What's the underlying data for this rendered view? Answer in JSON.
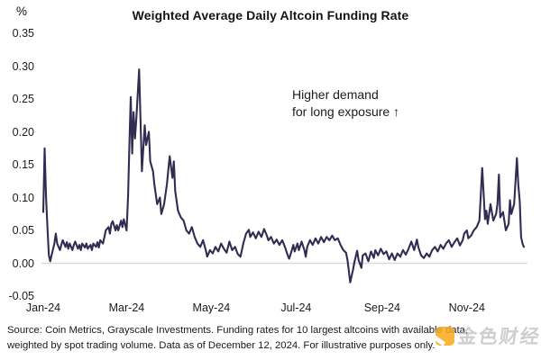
{
  "header": {
    "title": "Weighted Average Daily Altcoin Funding Rate",
    "y_axis_unit": "%"
  },
  "annotation": {
    "line1": "Higher demand",
    "line2": "for long exposure ↑"
  },
  "footer": {
    "source_line1": "Source: Coin Metrics, Grayscale Investments. Funding rates for 10 largest altcoins with available data,",
    "source_line2": "weighted by spot trading volume. Data as of December 12, 2024. For illustrative purposes only."
  },
  "watermark": {
    "text": "金色财经",
    "icon_color": "#F8A91B"
  },
  "chart_data": {
    "type": "line",
    "title": "Weighted Average Daily Altcoin Funding Rate",
    "xlabel": "",
    "ylabel": "%",
    "ylim": [
      -0.05,
      0.35
    ],
    "grid": false,
    "legend": null,
    "line_color": "#322B52",
    "zero_line_color": "#D9D9D9",
    "x_unit": "days since 2024-01-01",
    "x_range_days": [
      0,
      346
    ],
    "yticks": [
      {
        "label": "0.35",
        "value": 0.35
      },
      {
        "label": "0.30",
        "value": 0.3
      },
      {
        "label": "0.25",
        "value": 0.25
      },
      {
        "label": "0.20",
        "value": 0.2
      },
      {
        "label": "0.15",
        "value": 0.15
      },
      {
        "label": "0.10",
        "value": 0.1
      },
      {
        "label": "0.05",
        "value": 0.05
      },
      {
        "label": "0.00",
        "value": 0.0
      },
      {
        "label": "-0.05",
        "value": -0.05
      }
    ],
    "xticks": [
      {
        "label": "Jan-24",
        "day": 0
      },
      {
        "label": "Mar-24",
        "day": 60
      },
      {
        "label": "May-24",
        "day": 121
      },
      {
        "label": "Jul-24",
        "day": 182
      },
      {
        "label": "Sep-24",
        "day": 244
      },
      {
        "label": "Nov-24",
        "day": 305
      }
    ],
    "points": [
      [
        0,
        0.078
      ],
      [
        1,
        0.175
      ],
      [
        2,
        0.1
      ],
      [
        3,
        0.055
      ],
      [
        4,
        0.012
      ],
      [
        5,
        0.003
      ],
      [
        6,
        0.012
      ],
      [
        8,
        0.03
      ],
      [
        9,
        0.045
      ],
      [
        10,
        0.03
      ],
      [
        12,
        0.02
      ],
      [
        13,
        0.028
      ],
      [
        14,
        0.035
      ],
      [
        16,
        0.025
      ],
      [
        17,
        0.032
      ],
      [
        18,
        0.022
      ],
      [
        19,
        0.03
      ],
      [
        21,
        0.02
      ],
      [
        22,
        0.028
      ],
      [
        23,
        0.033
      ],
      [
        25,
        0.022
      ],
      [
        26,
        0.028
      ],
      [
        27,
        0.02
      ],
      [
        28,
        0.03
      ],
      [
        30,
        0.024
      ],
      [
        31,
        0.03
      ],
      [
        32,
        0.022
      ],
      [
        34,
        0.028
      ],
      [
        35,
        0.02
      ],
      [
        36,
        0.03
      ],
      [
        38,
        0.025
      ],
      [
        39,
        0.032
      ],
      [
        40,
        0.024
      ],
      [
        41,
        0.035
      ],
      [
        43,
        0.03
      ],
      [
        44,
        0.04
      ],
      [
        45,
        0.05
      ],
      [
        47,
        0.055
      ],
      [
        48,
        0.045
      ],
      [
        49,
        0.06
      ],
      [
        50,
        0.064
      ],
      [
        52,
        0.05
      ],
      [
        53,
        0.058
      ],
      [
        54,
        0.05
      ],
      [
        56,
        0.065
      ],
      [
        57,
        0.055
      ],
      [
        58,
        0.067
      ],
      [
        60,
        0.05
      ],
      [
        61,
        0.1
      ],
      [
        62,
        0.18
      ],
      [
        63,
        0.253
      ],
      [
        64,
        0.167
      ],
      [
        65,
        0.23
      ],
      [
        66,
        0.19
      ],
      [
        67,
        0.22
      ],
      [
        69,
        0.295
      ],
      [
        71,
        0.14
      ],
      [
        73,
        0.21
      ],
      [
        74,
        0.18
      ],
      [
        76,
        0.2
      ],
      [
        77,
        0.155
      ],
      [
        79,
        0.14
      ],
      [
        80,
        0.12
      ],
      [
        82,
        0.09
      ],
      [
        84,
        0.1
      ],
      [
        85,
        0.075
      ],
      [
        87,
        0.09
      ],
      [
        89,
        0.12
      ],
      [
        91,
        0.163
      ],
      [
        93,
        0.13
      ],
      [
        94,
        0.155
      ],
      [
        95,
        0.11
      ],
      [
        97,
        0.08
      ],
      [
        99,
        0.07
      ],
      [
        101,
        0.065
      ],
      [
        103,
        0.05
      ],
      [
        105,
        0.045
      ],
      [
        107,
        0.055
      ],
      [
        109,
        0.04
      ],
      [
        111,
        0.03
      ],
      [
        113,
        0.025
      ],
      [
        115,
        0.035
      ],
      [
        117,
        0.02
      ],
      [
        118,
        0.01
      ],
      [
        120,
        0.02
      ],
      [
        122,
        0.015
      ],
      [
        124,
        0.025
      ],
      [
        126,
        0.018
      ],
      [
        128,
        0.03
      ],
      [
        130,
        0.022
      ],
      [
        132,
        0.016
      ],
      [
        134,
        0.033
      ],
      [
        136,
        0.02
      ],
      [
        138,
        0.025
      ],
      [
        140,
        0.014
      ],
      [
        142,
        0.01
      ],
      [
        144,
        0.03
      ],
      [
        146,
        0.045
      ],
      [
        148,
        0.051
      ],
      [
        149,
        0.04
      ],
      [
        151,
        0.047
      ],
      [
        153,
        0.038
      ],
      [
        155,
        0.048
      ],
      [
        157,
        0.04
      ],
      [
        159,
        0.052
      ],
      [
        161,
        0.042
      ],
      [
        162,
        0.035
      ],
      [
        164,
        0.04
      ],
      [
        166,
        0.03
      ],
      [
        168,
        0.036
      ],
      [
        170,
        0.028
      ],
      [
        172,
        0.035
      ],
      [
        174,
        0.025
      ],
      [
        176,
        0.012
      ],
      [
        177,
        0.007
      ],
      [
        179,
        0.02
      ],
      [
        180,
        0.028
      ],
      [
        181,
        0.018
      ],
      [
        183,
        0.03
      ],
      [
        184,
        0.02
      ],
      [
        186,
        0.033
      ],
      [
        188,
        0.02
      ],
      [
        189,
        0.01
      ],
      [
        190,
        0.025
      ],
      [
        192,
        0.035
      ],
      [
        194,
        0.028
      ],
      [
        196,
        0.038
      ],
      [
        198,
        0.03
      ],
      [
        200,
        0.04
      ],
      [
        202,
        0.032
      ],
      [
        204,
        0.04
      ],
      [
        206,
        0.035
      ],
      [
        208,
        0.042
      ],
      [
        210,
        0.035
      ],
      [
        212,
        0.038
      ],
      [
        214,
        0.028
      ],
      [
        216,
        0.02
      ],
      [
        218,
        0.016
      ],
      [
        219,
        0.005
      ],
      [
        221,
        -0.029
      ],
      [
        223,
        -0.01
      ],
      [
        224,
        0.002
      ],
      [
        226,
        0.019
      ],
      [
        227,
        0.005
      ],
      [
        229,
        -0.007
      ],
      [
        230,
        0.012
      ],
      [
        232,
        0.015
      ],
      [
        234,
        0.003
      ],
      [
        236,
        0.018
      ],
      [
        238,
        0.008
      ],
      [
        239,
        0.02
      ],
      [
        241,
        0.012
      ],
      [
        243,
        0.022
      ],
      [
        245,
        0.014
      ],
      [
        247,
        0.018
      ],
      [
        249,
        0.006
      ],
      [
        251,
        0.015
      ],
      [
        253,
        0.005
      ],
      [
        255,
        0.015
      ],
      [
        257,
        0.01
      ],
      [
        259,
        0.02
      ],
      [
        261,
        0.013
      ],
      [
        263,
        0.022
      ],
      [
        265,
        0.033
      ],
      [
        267,
        0.02
      ],
      [
        269,
        0.036
      ],
      [
        270,
        0.025
      ],
      [
        272,
        0.012
      ],
      [
        274,
        0.008
      ],
      [
        276,
        0.015
      ],
      [
        278,
        0.01
      ],
      [
        280,
        0.02
      ],
      [
        282,
        0.025
      ],
      [
        284,
        0.018
      ],
      [
        286,
        0.028
      ],
      [
        288,
        0.022
      ],
      [
        290,
        0.03
      ],
      [
        292,
        0.035
      ],
      [
        294,
        0.025
      ],
      [
        296,
        0.032
      ],
      [
        298,
        0.038
      ],
      [
        300,
        0.027
      ],
      [
        302,
        0.035
      ],
      [
        303,
        0.045
      ],
      [
        305,
        0.05
      ],
      [
        306,
        0.038
      ],
      [
        308,
        0.042
      ],
      [
        310,
        0.05
      ],
      [
        312,
        0.055
      ],
      [
        314,
        0.065
      ],
      [
        316,
        0.145
      ],
      [
        318,
        0.067
      ],
      [
        319,
        0.08
      ],
      [
        320,
        0.06
      ],
      [
        322,
        0.09
      ],
      [
        324,
        0.065
      ],
      [
        326,
        0.075
      ],
      [
        327,
        0.09
      ],
      [
        328,
        0.135
      ],
      [
        329,
        0.07
      ],
      [
        331,
        0.078
      ],
      [
        333,
        0.05
      ],
      [
        335,
        0.06
      ],
      [
        336,
        0.096
      ],
      [
        337,
        0.075
      ],
      [
        339,
        0.09
      ],
      [
        341,
        0.16
      ],
      [
        342,
        0.12
      ],
      [
        343,
        0.095
      ],
      [
        344,
        0.04
      ],
      [
        345,
        0.03
      ],
      [
        346,
        0.025
      ]
    ]
  }
}
